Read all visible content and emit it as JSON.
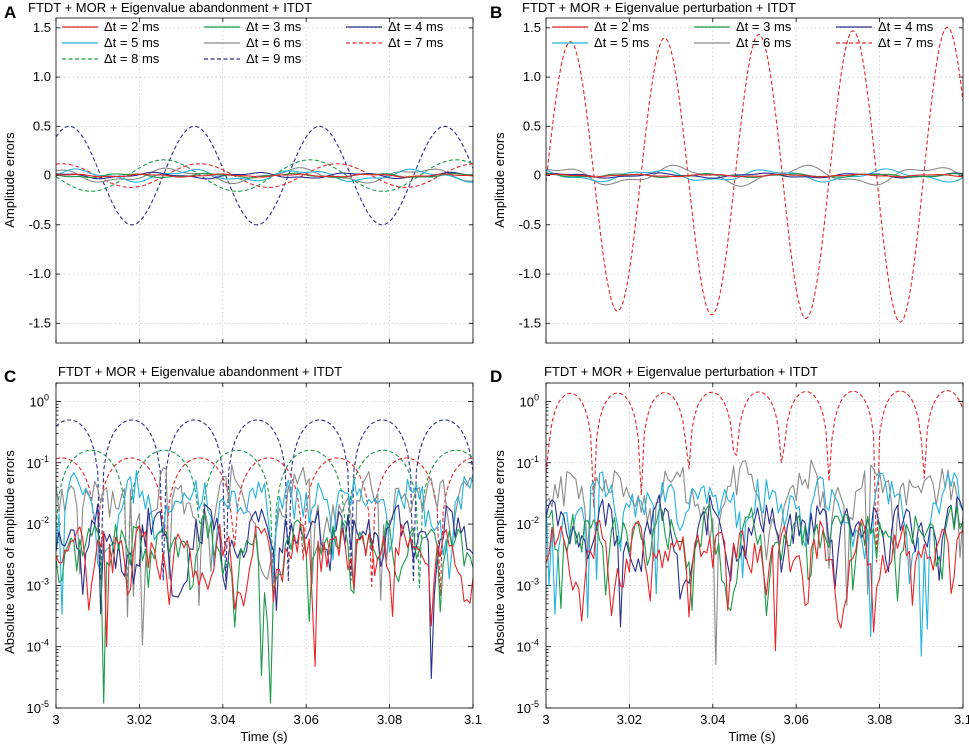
{
  "colors": {
    "dt2": "#e8262a",
    "dt3": "#1c9a4a",
    "dt4": "#2a2f8f",
    "dt5": "#23b2de",
    "dt6": "#8a8a8a",
    "dt7": "#e8262a",
    "dt8": "#1c9a4a",
    "dt9": "#2a2f8f"
  },
  "chart_data": [
    {
      "panel": "A",
      "type": "line",
      "title": "FTDT + MOR + Eigenvalue abandonment + ITDT",
      "xlabel": "",
      "ylabel": "Amplitude errors",
      "xlim": [
        3,
        3.1
      ],
      "ylim": [
        -1.7,
        1.6
      ],
      "yscale": "linear",
      "xticks": [
        "",
        "",
        "",
        "",
        "",
        ""
      ],
      "yticks": [
        "-1.5",
        "-1.0",
        "-0.5",
        "0",
        "0.5",
        "1.0",
        "1.5"
      ],
      "ytick_values": [
        -1.5,
        -1.0,
        -0.5,
        0,
        0.5,
        1.0,
        1.5
      ],
      "legend": [
        {
          "label": "Δt = 2 ms",
          "key": "dt2",
          "dashed": false
        },
        {
          "label": "Δt = 3 ms",
          "key": "dt3",
          "dashed": false
        },
        {
          "label": "Δt = 4 ms",
          "key": "dt4",
          "dashed": false
        },
        {
          "label": "Δt = 5 ms",
          "key": "dt5",
          "dashed": false
        },
        {
          "label": "Δt = 6 ms",
          "key": "dt6",
          "dashed": false
        },
        {
          "label": "Δt = 7 ms",
          "key": "dt7",
          "dashed": true
        },
        {
          "label": "Δt = 8 ms",
          "key": "dt8",
          "dashed": true
        },
        {
          "label": "Δt = 9 ms",
          "key": "dt9",
          "dashed": true
        }
      ],
      "series": [
        {
          "name": "Δt = 9 ms",
          "key": "dt9",
          "dashed": true,
          "amp": 0.5,
          "period": 0.03,
          "phase": 0.9,
          "seed": 9
        },
        {
          "name": "Δt = 8 ms",
          "key": "dt8",
          "dashed": true,
          "amp": 0.16,
          "period": 0.035,
          "phase": 3.2,
          "seed": 8
        },
        {
          "name": "Δt = 7 ms",
          "key": "dt7",
          "dashed": true,
          "amp": 0.12,
          "period": 0.033,
          "phase": 1.3,
          "seed": 7
        },
        {
          "name": "Δt = 6 ms",
          "key": "dt6",
          "dashed": false,
          "amp": 0.06,
          "period": 0.03,
          "phase": 2.0,
          "seed": 6
        },
        {
          "name": "Δt = 5 ms",
          "key": "dt5",
          "dashed": false,
          "amp": 0.05,
          "period": 0.027,
          "phase": 0.4,
          "seed": 5
        },
        {
          "name": "Δt = 4 ms",
          "key": "dt4",
          "dashed": false,
          "amp": 0.025,
          "period": 0.024,
          "phase": 1.7,
          "seed": 4
        },
        {
          "name": "Δt = 3 ms",
          "key": "dt3",
          "dashed": false,
          "amp": 0.018,
          "period": 0.02,
          "phase": 2.6,
          "seed": 3
        },
        {
          "name": "Δt = 2 ms",
          "key": "dt2",
          "dashed": false,
          "amp": 0.012,
          "period": 0.018,
          "phase": 0.3,
          "seed": 2
        }
      ]
    },
    {
      "panel": "B",
      "type": "line",
      "title": "FTDT + MOR + Eigenvalue perturbation + ITDT",
      "xlabel": "",
      "ylabel": "Amplitude errors",
      "xlim": [
        3,
        3.1
      ],
      "ylim": [
        -1.7,
        1.6
      ],
      "yscale": "linear",
      "xticks": [
        "",
        "",
        "",
        "",
        "",
        ""
      ],
      "yticks": [
        "-1.5",
        "-1.0",
        "-0.5",
        "0",
        "0.5",
        "1.0",
        "1.5"
      ],
      "ytick_values": [
        -1.5,
        -1.0,
        -0.5,
        0,
        0.5,
        1.0,
        1.5
      ],
      "legend": [
        {
          "label": "Δt = 2 ms",
          "key": "dt2",
          "dashed": false
        },
        {
          "label": "Δt = 3 ms",
          "key": "dt3",
          "dashed": false
        },
        {
          "label": "Δt = 4 ms",
          "key": "dt4",
          "dashed": false
        },
        {
          "label": "Δt = 5 ms",
          "key": "dt5",
          "dashed": false
        },
        {
          "label": "Δt = 6 ms",
          "key": "dt6",
          "dashed": false
        },
        {
          "label": "Δt = 7 ms",
          "key": "dt7",
          "dashed": true
        }
      ],
      "series": [
        {
          "name": "Δt = 7 ms",
          "key": "dt7",
          "dashed": true,
          "amp": 1.35,
          "period": 0.0226,
          "phase": -0.05,
          "seed": 17,
          "growth": 0.12
        },
        {
          "name": "Δt = 6 ms",
          "key": "dt6",
          "dashed": false,
          "amp": 0.08,
          "period": 0.03,
          "phase": 1.2,
          "seed": 16
        },
        {
          "name": "Δt = 5 ms",
          "key": "dt5",
          "dashed": false,
          "amp": 0.05,
          "period": 0.028,
          "phase": 2.1,
          "seed": 15
        },
        {
          "name": "Δt = 4 ms",
          "key": "dt4",
          "dashed": false,
          "amp": 0.02,
          "period": 0.024,
          "phase": 0.7,
          "seed": 14
        },
        {
          "name": "Δt = 3 ms",
          "key": "dt3",
          "dashed": false,
          "amp": 0.015,
          "period": 0.02,
          "phase": 1.9,
          "seed": 13
        },
        {
          "name": "Δt = 2 ms",
          "key": "dt2",
          "dashed": false,
          "amp": 0.01,
          "period": 0.018,
          "phase": 0.5,
          "seed": 12
        }
      ]
    },
    {
      "panel": "C",
      "type": "line",
      "title": "FTDT + MOR + Eigenvalue abandonment + ITDT",
      "xlabel": "Time (s)",
      "ylabel": "Absolute values of amplitude errors",
      "xlim": [
        3,
        3.1
      ],
      "ylim": [
        1e-05,
        2
      ],
      "yscale": "log",
      "xticks": [
        "3",
        "3.02",
        "3.04",
        "3.06",
        "3.08",
        "3.1"
      ],
      "ytick_exps": [
        -5,
        -4,
        -3,
        -2,
        -1,
        0
      ],
      "series": [
        {
          "name": "Δt = 9 ms",
          "key": "dt9",
          "dashed": true,
          "amp": 0.5,
          "period": 0.03,
          "phase": 0.9,
          "seed": 9
        },
        {
          "name": "Δt = 8 ms",
          "key": "dt8",
          "dashed": true,
          "amp": 0.16,
          "period": 0.035,
          "phase": 3.2,
          "seed": 8
        },
        {
          "name": "Δt = 7 ms",
          "key": "dt7",
          "dashed": true,
          "amp": 0.12,
          "period": 0.033,
          "phase": 1.3,
          "seed": 7
        },
        {
          "name": "Δt = 6 ms",
          "key": "dt6",
          "dashed": false,
          "amp": 0.06,
          "period": 0.03,
          "phase": 2.0,
          "seed": 6
        },
        {
          "name": "Δt = 5 ms",
          "key": "dt5",
          "dashed": false,
          "amp": 0.05,
          "period": 0.027,
          "phase": 0.4,
          "seed": 5
        },
        {
          "name": "Δt = 4 ms",
          "key": "dt4",
          "dashed": false,
          "amp": 0.015,
          "period": 0.024,
          "phase": 1.7,
          "seed": 4
        },
        {
          "name": "Δt = 3 ms",
          "key": "dt3",
          "dashed": false,
          "amp": 0.01,
          "period": 0.02,
          "phase": 2.6,
          "seed": 3
        },
        {
          "name": "Δt = 2 ms",
          "key": "dt2",
          "dashed": false,
          "amp": 0.008,
          "period": 0.018,
          "phase": 0.3,
          "seed": 2
        }
      ]
    },
    {
      "panel": "D",
      "type": "line",
      "title": "FTDT + MOR + Eigenvalue perturbation + ITDT",
      "xlabel": "Time (s)",
      "ylabel": "Absolute values of amplitude errors",
      "xlim": [
        3,
        3.1
      ],
      "ylim": [
        1e-05,
        2
      ],
      "yscale": "log",
      "xticks": [
        "3",
        "3.02",
        "3.04",
        "3.06",
        "3.08",
        "3.1"
      ],
      "ytick_exps": [
        -5,
        -4,
        -3,
        -2,
        -1,
        0
      ],
      "series": [
        {
          "name": "Δt = 7 ms",
          "key": "dt7",
          "dashed": true,
          "amp": 1.35,
          "period": 0.0226,
          "phase": -0.05,
          "seed": 17,
          "growth": 0.12
        },
        {
          "name": "Δt = 6 ms",
          "key": "dt6",
          "dashed": false,
          "amp": 0.08,
          "period": 0.03,
          "phase": 1.2,
          "seed": 16
        },
        {
          "name": "Δt = 5 ms",
          "key": "dt5",
          "dashed": false,
          "amp": 0.05,
          "period": 0.028,
          "phase": 2.1,
          "seed": 15
        },
        {
          "name": "Δt = 4 ms",
          "key": "dt4",
          "dashed": false,
          "amp": 0.02,
          "period": 0.024,
          "phase": 0.7,
          "seed": 14
        },
        {
          "name": "Δt = 3 ms",
          "key": "dt3",
          "dashed": false,
          "amp": 0.015,
          "period": 0.02,
          "phase": 1.9,
          "seed": 13
        },
        {
          "name": "Δt = 2 ms",
          "key": "dt2",
          "dashed": false,
          "amp": 0.008,
          "period": 0.018,
          "phase": 0.5,
          "seed": 12
        }
      ]
    }
  ]
}
